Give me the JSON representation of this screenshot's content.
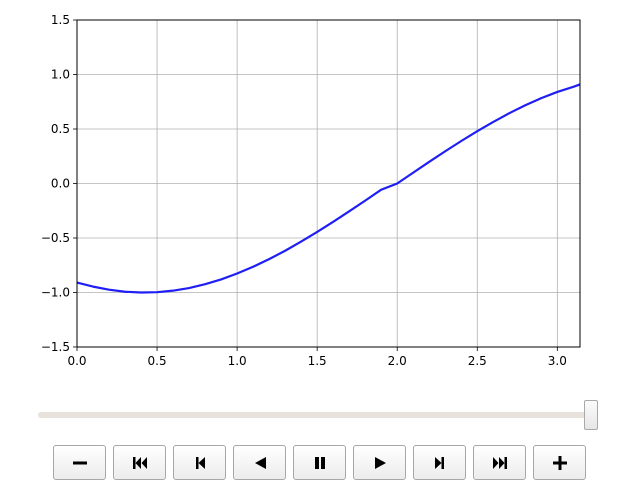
{
  "chart_data": {
    "type": "line",
    "x_ticks": [
      "0.0",
      "0.5",
      "1.0",
      "1.5",
      "2.0",
      "2.5",
      "3.0"
    ],
    "y_ticks": [
      "1.5",
      "1.0",
      "0.5",
      "0.0",
      "−0.5",
      "−1.0",
      "−1.5"
    ],
    "xlim": [
      0,
      3.1416
    ],
    "ylim": [
      -1.5,
      1.5
    ],
    "grid": true,
    "series": [
      {
        "color": "#1f1ff5",
        "x": [
          0,
          0.1,
          0.2,
          0.3,
          0.4,
          0.5,
          0.6,
          0.7,
          0.8,
          0.9,
          1.0,
          1.1,
          1.2,
          1.3,
          1.4,
          1.5,
          1.6,
          1.7,
          1.8,
          1.9,
          2.0,
          2.1,
          2.2,
          2.3,
          2.4,
          2.5,
          2.6,
          2.7,
          2.8,
          2.9,
          3.0,
          3.1,
          3.1416
        ],
        "y": [
          -0.909,
          -0.946,
          -0.974,
          -0.993,
          -1.0,
          -0.997,
          -0.983,
          -0.959,
          -0.924,
          -0.88,
          -0.826,
          -0.764,
          -0.694,
          -0.617,
          -0.533,
          -0.444,
          -0.351,
          -0.255,
          -0.157,
          -0.057,
          0.0,
          0.1,
          0.199,
          0.296,
          0.39,
          0.48,
          0.565,
          0.645,
          0.718,
          0.783,
          0.84,
          0.887,
          0.909
        ]
      }
    ]
  },
  "animation": {
    "slider_value": 1.0,
    "buttons": [
      {
        "name": "decrease-speed-button",
        "icon": "minus-icon"
      },
      {
        "name": "first-frame-button",
        "icon": "skip-to-start-icon"
      },
      {
        "name": "previous-frame-button",
        "icon": "step-back-icon"
      },
      {
        "name": "play-reverse-button",
        "icon": "play-reverse-icon"
      },
      {
        "name": "pause-button",
        "icon": "pause-icon"
      },
      {
        "name": "play-button",
        "icon": "play-icon"
      },
      {
        "name": "next-frame-button",
        "icon": "step-forward-icon"
      },
      {
        "name": "last-frame-button",
        "icon": "skip-to-end-icon"
      },
      {
        "name": "increase-speed-button",
        "icon": "plus-icon"
      }
    ]
  }
}
